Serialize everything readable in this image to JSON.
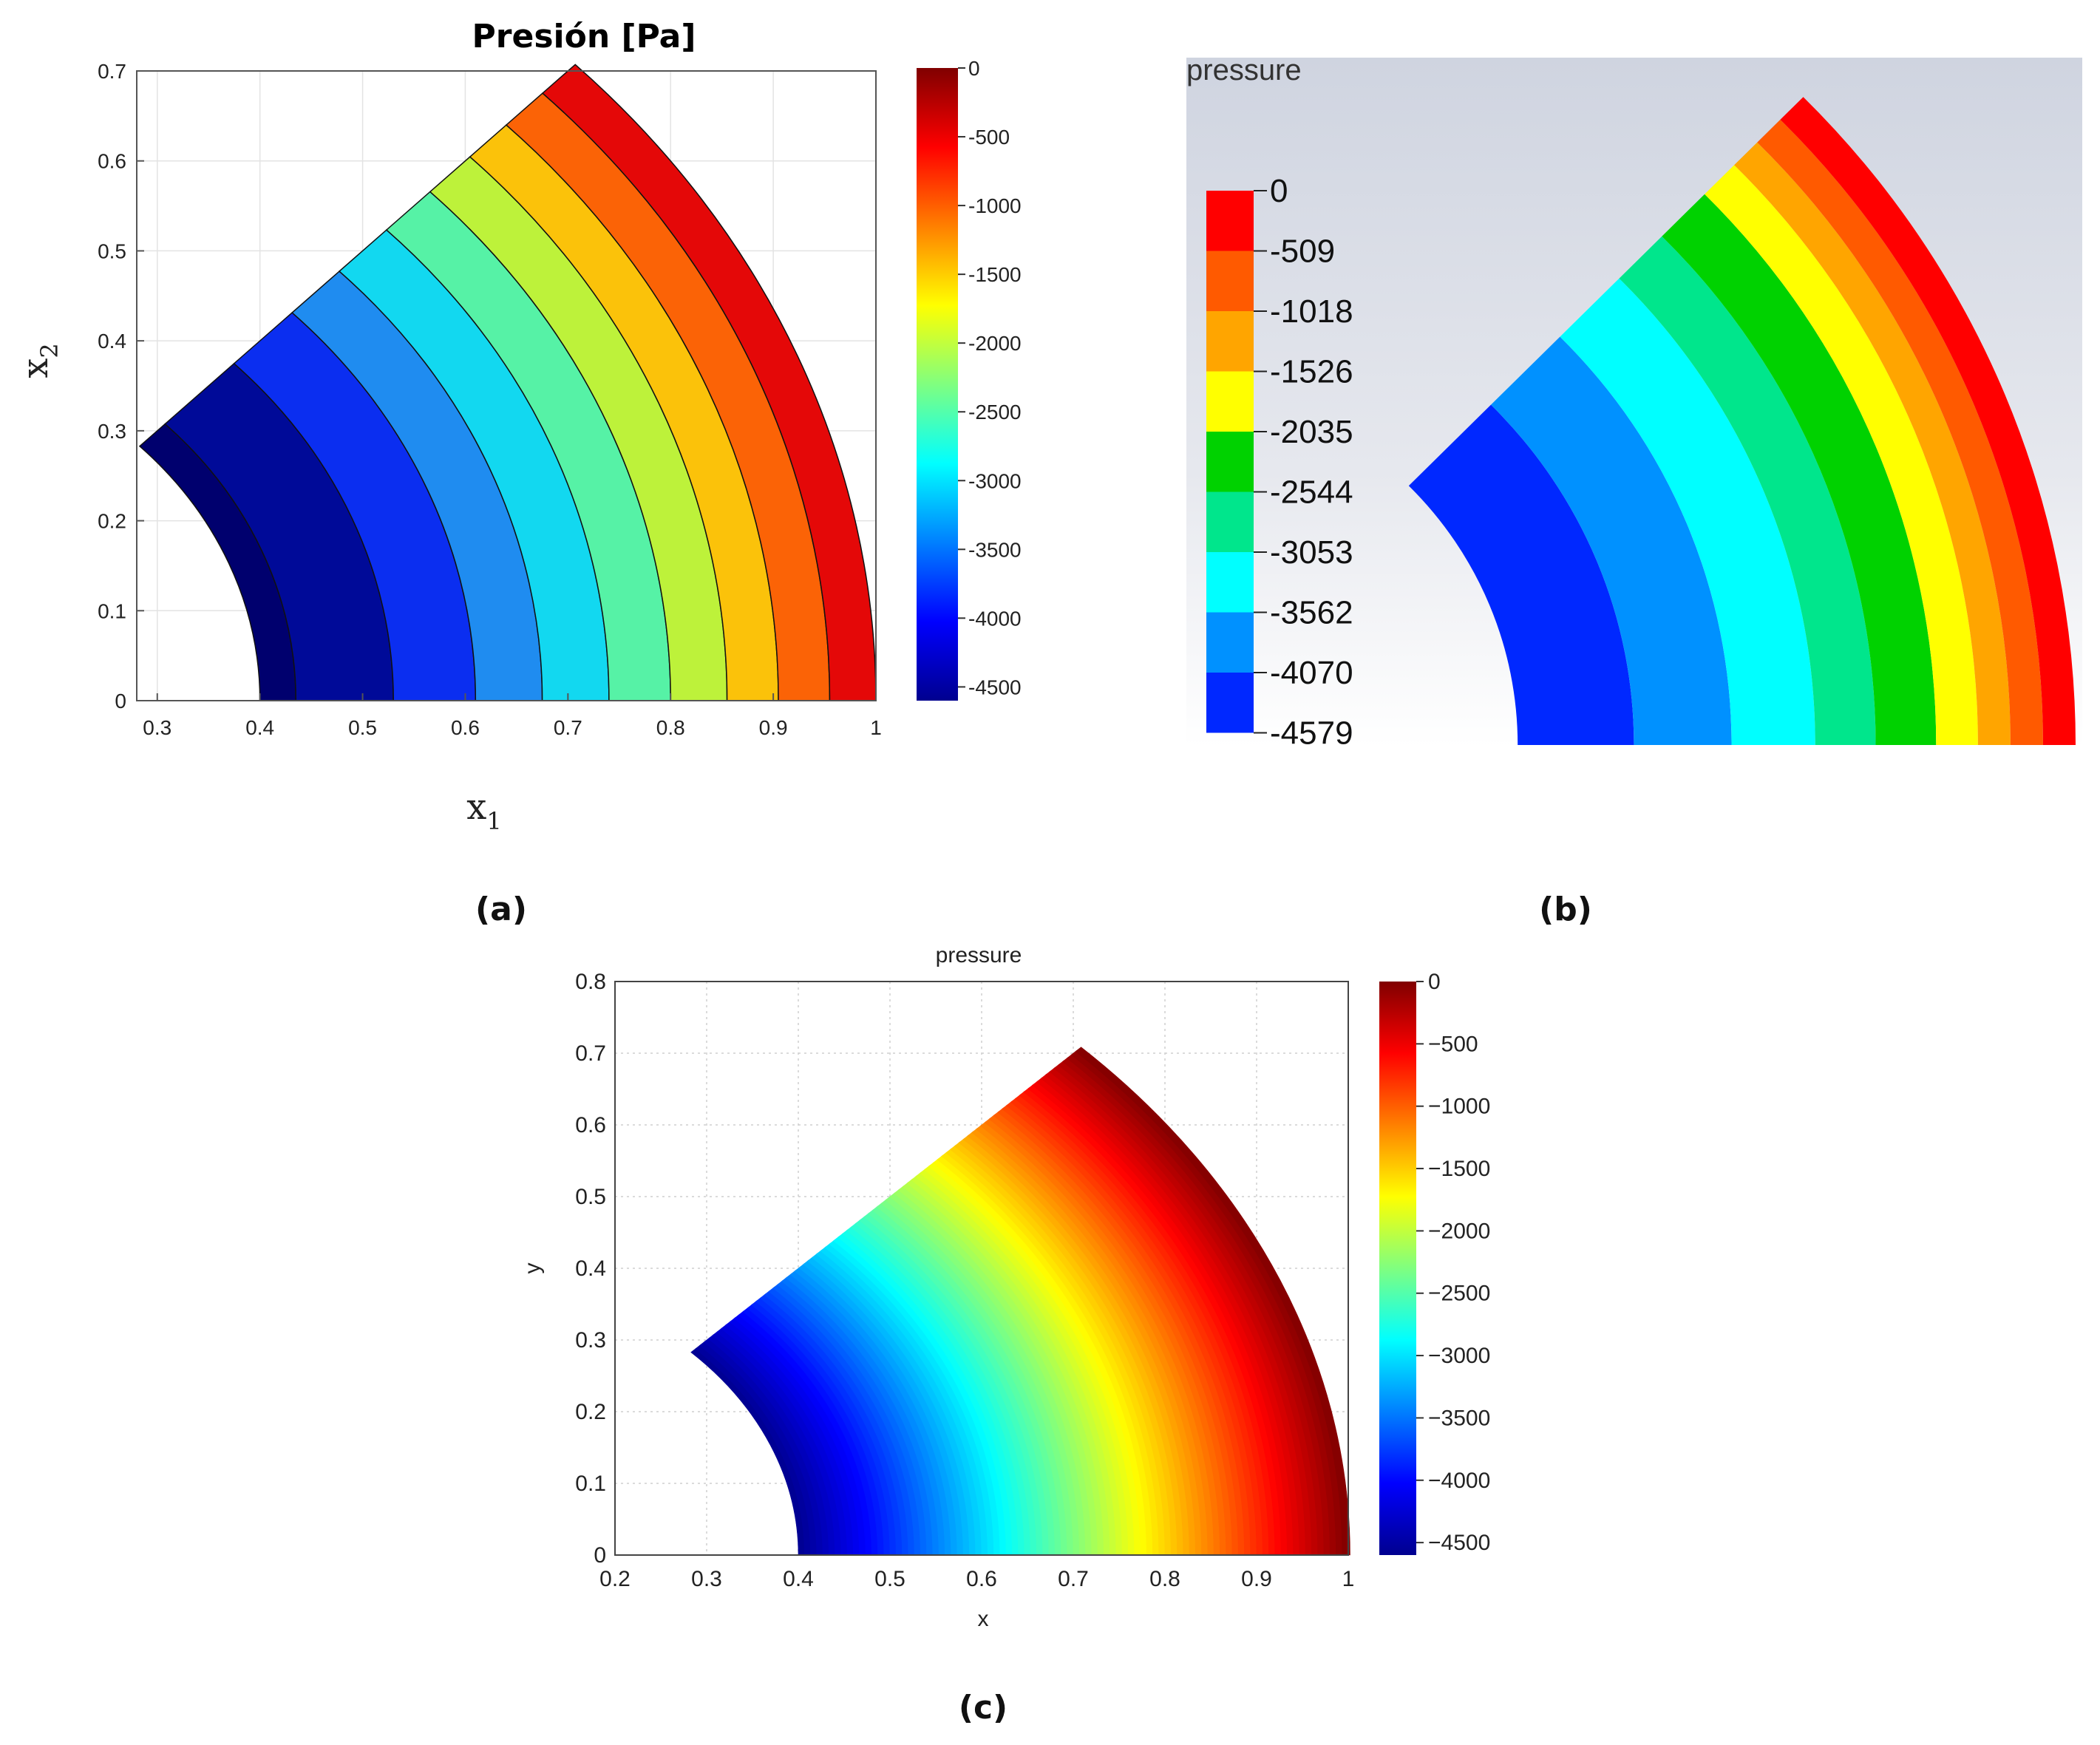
{
  "chart_data": [
    {
      "panel": "a",
      "type": "heatmap",
      "style": "banded-contour",
      "title": "Presión [Pa]",
      "xlabel": "x",
      "xlabel_sub": "1",
      "ylabel": "x",
      "ylabel_sub": "2",
      "xlim": [
        0.28,
        1.0
      ],
      "ylim": [
        0,
        0.7
      ],
      "xticks": [
        "0.3",
        "0.4",
        "0.5",
        "0.6",
        "0.7",
        "0.8",
        "0.9",
        "1"
      ],
      "yticks": [
        "0",
        "0.1",
        "0.2",
        "0.3",
        "0.4",
        "0.5",
        "0.6",
        "0.7"
      ],
      "grid": true,
      "geometry": {
        "r_inner": 0.4,
        "r_outer": 1.0,
        "theta_deg": [
          0,
          45
        ]
      },
      "bands": [
        {
          "r": [
            0.4,
            0.435
          ],
          "color": "#00006e"
        },
        {
          "r": [
            0.435,
            0.53
          ],
          "color": "#000a98"
        },
        {
          "r": [
            0.53,
            0.61
          ],
          "color": "#0b2ef0"
        },
        {
          "r": [
            0.61,
            0.675
          ],
          "color": "#1f8cf0"
        },
        {
          "r": [
            0.675,
            0.74
          ],
          "color": "#12d8f0"
        },
        {
          "r": [
            0.74,
            0.8
          ],
          "color": "#56f2a6"
        },
        {
          "r": [
            0.8,
            0.855
          ],
          "color": "#bdf23a"
        },
        {
          "r": [
            0.855,
            0.905
          ],
          "color": "#fbc20a"
        },
        {
          "r": [
            0.905,
            0.955
          ],
          "color": "#fb6306"
        },
        {
          "r": [
            0.955,
            1.0
          ],
          "color": "#e40808"
        }
      ],
      "colorbar": {
        "min": -4600,
        "max": 0,
        "ticks": [
          "0",
          "-500",
          "-1000",
          "-1500",
          "-2000",
          "-2500",
          "-3000",
          "-3500",
          "-4000",
          "-4500"
        ],
        "colormap": "jet"
      },
      "panel_label": "(a)"
    },
    {
      "panel": "b",
      "type": "heatmap",
      "style": "banded-contour",
      "title": "pressure",
      "geometry": {
        "r_inner": 0.4,
        "r_outer": 1.0,
        "theta_deg": [
          0,
          45
        ]
      },
      "legend_values": [
        "0",
        "-509",
        "-1018",
        "-1526",
        "-2035",
        "-2544",
        "-3053",
        "-3562",
        "-4070",
        "-4579"
      ],
      "legend_colors": [
        "#ff0000",
        "#ff5a00",
        "#ffa500",
        "#ffff00",
        "#00d200",
        "#00e68c",
        "#00ffff",
        "#0091ff",
        "#0028ff"
      ],
      "bands": [
        {
          "r": [
            0.4,
            0.525
          ],
          "color": "#0028ff"
        },
        {
          "r": [
            0.525,
            0.63
          ],
          "color": "#0091ff"
        },
        {
          "r": [
            0.63,
            0.72
          ],
          "color": "#00ffff"
        },
        {
          "r": [
            0.72,
            0.785
          ],
          "color": "#00e68c"
        },
        {
          "r": [
            0.785,
            0.85
          ],
          "color": "#00d200"
        },
        {
          "r": [
            0.85,
            0.895
          ],
          "color": "#ffff00"
        },
        {
          "r": [
            0.895,
            0.93
          ],
          "color": "#ffa500"
        },
        {
          "r": [
            0.93,
            0.965
          ],
          "color": "#ff5a00"
        },
        {
          "r": [
            0.965,
            1.0
          ],
          "color": "#ff0000"
        }
      ],
      "panel_label": "(b)"
    },
    {
      "panel": "c",
      "type": "heatmap",
      "style": "continuous",
      "title": "pressure",
      "xlabel": "x",
      "ylabel": "y",
      "xlim": [
        0.2,
        1.0
      ],
      "ylim": [
        0,
        0.8
      ],
      "xticks": [
        "0.2",
        "0.3",
        "0.4",
        "0.5",
        "0.6",
        "0.7",
        "0.8",
        "0.9",
        "1"
      ],
      "yticks": [
        "0",
        "0.1",
        "0.2",
        "0.3",
        "0.4",
        "0.5",
        "0.6",
        "0.7",
        "0.8"
      ],
      "grid": "dotted",
      "geometry": {
        "r_inner": 0.4,
        "r_outer": 1.0,
        "theta_deg": [
          0,
          45
        ]
      },
      "field": {
        "p_at_r_inner": -4600,
        "p_at_r_outer": 0
      },
      "colorbar": {
        "min": -4600,
        "max": 0,
        "ticks": [
          "0",
          "−500",
          "−1000",
          "−1500",
          "−2000",
          "−2500",
          "−3000",
          "−3500",
          "−4000",
          "−4500"
        ],
        "colormap": "jet"
      },
      "panel_label": "(c)"
    }
  ]
}
